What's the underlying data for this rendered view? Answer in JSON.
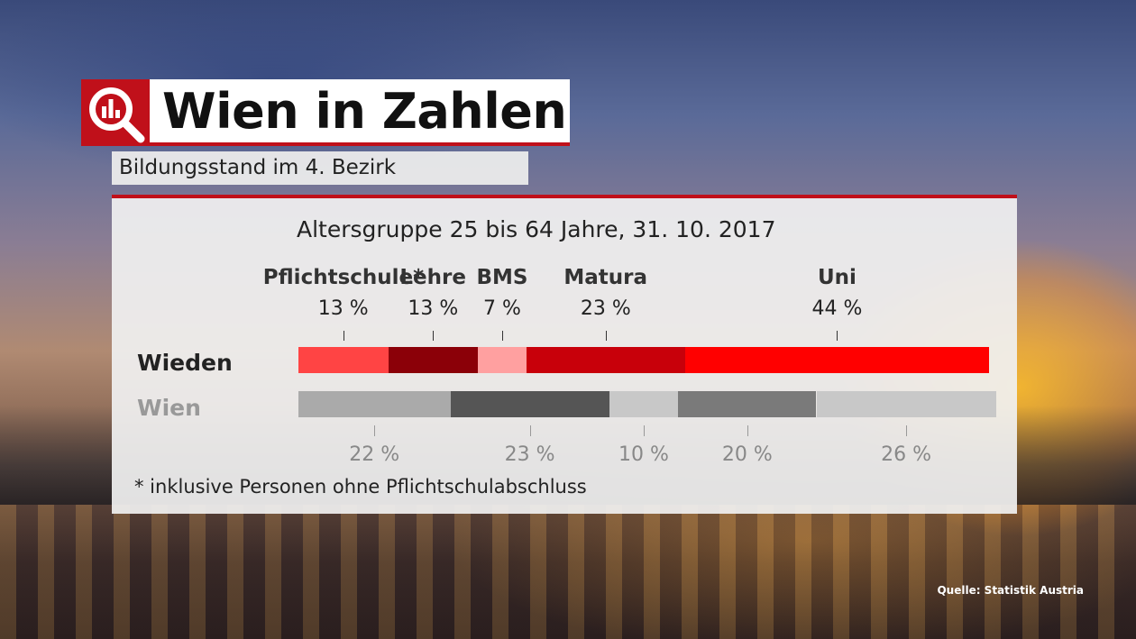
{
  "header": {
    "title": "Wien in Zahlen",
    "subtitle": "Bildungsstand im 4. Bezirk",
    "icon": "bar-chart-magnifier-icon"
  },
  "source": "Quelle: Statistik Austria",
  "footnote": "* inklusive Personen ohne Pflichtschulabschluss",
  "colors": {
    "accent": "#c0101a",
    "wieden": [
      "#ff4444",
      "#8b0008",
      "#ffa0a0",
      "#c8000a",
      "#ff0000"
    ],
    "wien": [
      "#aaaaaa",
      "#555555",
      "#c8c8c8",
      "#7a7a7a",
      "#c8c8c8"
    ]
  },
  "chart_data": {
    "type": "bar",
    "orientation": "horizontal-stacked",
    "title": "Altersgruppe 25 bis 64 Jahre, 31. 10. 2017",
    "categories": [
      "Pflichtschule*",
      "Lehre",
      "BMS",
      "Matura",
      "Uni"
    ],
    "series": [
      {
        "name": "Wieden",
        "values": [
          13,
          13,
          7,
          23,
          44
        ],
        "labels": [
          "13 %",
          "13 %",
          "7 %",
          "23 %",
          "44 %"
        ]
      },
      {
        "name": "Wien",
        "values": [
          22,
          23,
          10,
          20,
          26
        ],
        "labels": [
          "22 %",
          "23 %",
          "10 %",
          "20 %",
          "26 %"
        ]
      }
    ],
    "xlim": [
      0,
      100
    ],
    "unit": "%"
  }
}
